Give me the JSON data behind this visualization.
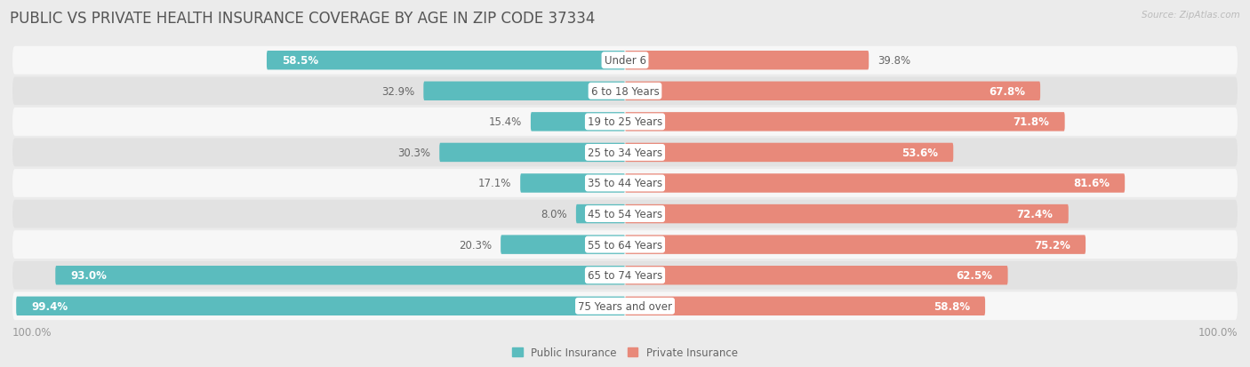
{
  "title": "PUBLIC VS PRIVATE HEALTH INSURANCE COVERAGE BY AGE IN ZIP CODE 37334",
  "source": "Source: ZipAtlas.com",
  "categories": [
    "Under 6",
    "6 to 18 Years",
    "19 to 25 Years",
    "25 to 34 Years",
    "35 to 44 Years",
    "45 to 54 Years",
    "55 to 64 Years",
    "65 to 74 Years",
    "75 Years and over"
  ],
  "public_values": [
    58.5,
    32.9,
    15.4,
    30.3,
    17.1,
    8.0,
    20.3,
    93.0,
    99.4
  ],
  "private_values": [
    39.8,
    67.8,
    71.8,
    53.6,
    81.6,
    72.4,
    75.2,
    62.5,
    58.8
  ],
  "public_color": "#5bbcbe",
  "private_color": "#e8897a",
  "bg_color": "#ebebeb",
  "row_bg_light": "#f7f7f7",
  "row_bg_dark": "#e2e2e2",
  "axis_label": "100.0%",
  "legend_public": "Public Insurance",
  "legend_private": "Private Insurance",
  "title_fontsize": 12,
  "label_fontsize": 8.5,
  "category_fontsize": 8.5,
  "bar_height": 0.62
}
